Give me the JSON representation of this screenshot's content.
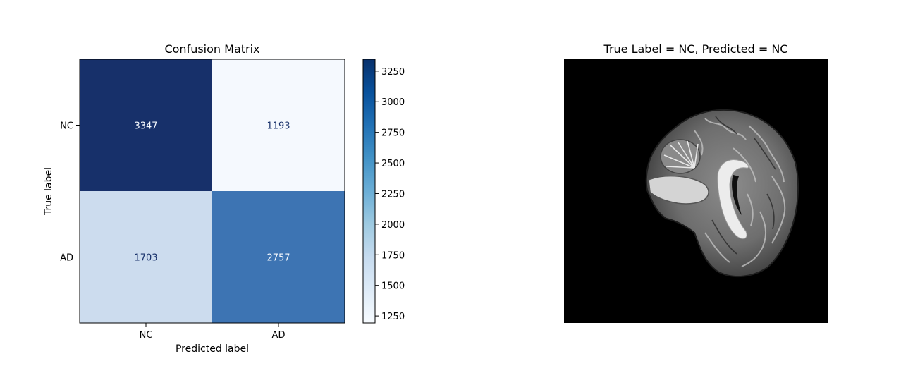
{
  "chart_data": [
    {
      "type": "heatmap",
      "title": "Confusion Matrix",
      "xlabel": "Predicted label",
      "ylabel": "True label",
      "x_categories": [
        "NC",
        "AD"
      ],
      "y_categories": [
        "NC",
        "AD"
      ],
      "values": [
        [
          3347,
          1193
        ],
        [
          1703,
          2757
        ]
      ],
      "colormap": "Blues",
      "colorbar": {
        "ticks": [
          1250,
          1500,
          1750,
          2000,
          2250,
          2500,
          2750,
          3000,
          3250
        ],
        "range": [
          1193,
          3347
        ]
      },
      "cell_colors": [
        [
          "#17306a",
          "#f5f9fe"
        ],
        [
          "#ccdcee",
          "#3d74b3"
        ]
      ],
      "text_colors": [
        [
          "#f5f9fe",
          "#17306a"
        ],
        [
          "#17306a",
          "#f5f9fe"
        ]
      ]
    }
  ],
  "image_panel": {
    "title": "True Label = NC, Predicted = NC",
    "content": "mri-sagittal-brain-slice",
    "background": "#000000"
  }
}
